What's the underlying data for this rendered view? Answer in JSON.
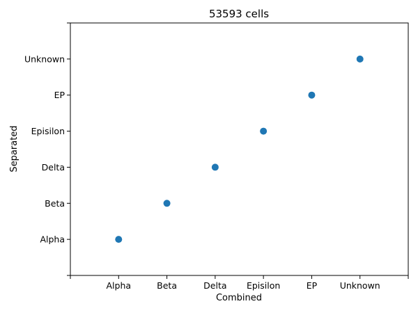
{
  "chart_data": {
    "type": "scatter",
    "title": "53593 cells",
    "xlabel": "Combined",
    "ylabel": "Separated",
    "x_categories": [
      "Alpha",
      "Beta",
      "Delta",
      "Episilon",
      "EP",
      "Unknown"
    ],
    "y_categories": [
      "Alpha",
      "Beta",
      "Delta",
      "Episilon",
      "EP",
      "Unknown"
    ],
    "points": [
      {
        "x": "Alpha",
        "y": "Alpha"
      },
      {
        "x": "Beta",
        "y": "Beta"
      },
      {
        "x": "Delta",
        "y": "Delta"
      },
      {
        "x": "Episilon",
        "y": "Episilon"
      },
      {
        "x": "EP",
        "y": "EP"
      },
      {
        "x": "Unknown",
        "y": "Unknown"
      }
    ],
    "marker_color": "#1f77b4",
    "grid": false,
    "legend": false
  }
}
